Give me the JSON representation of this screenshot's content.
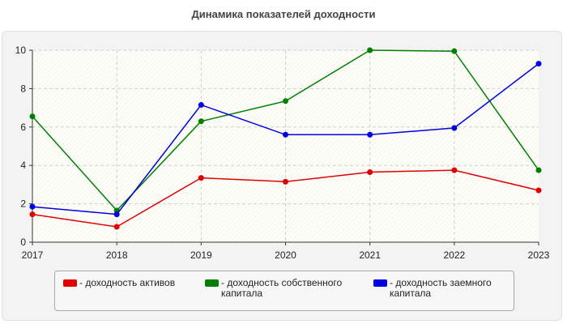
{
  "chart_data": {
    "type": "line",
    "title": "Динамика показателей доходности",
    "x": [
      "2017",
      "2018",
      "2019",
      "2020",
      "2021",
      "2022",
      "2023"
    ],
    "ylim": [
      0,
      10
    ],
    "yticks": [
      "0",
      "2",
      "4",
      "6",
      "8",
      "10"
    ],
    "grid": true,
    "legend_placement": "bottom",
    "series": [
      {
        "name": "- доходность активов",
        "color": "#e00000",
        "values": [
          1.45,
          0.8,
          3.35,
          3.15,
          3.65,
          3.75,
          2.7
        ]
      },
      {
        "name": "- доходность собственного капитала",
        "color": "#008000",
        "values": [
          6.55,
          1.65,
          6.3,
          7.35,
          10.0,
          9.95,
          3.75
        ]
      },
      {
        "name": "- доходность заемного капитала",
        "color": "#0000e0",
        "values": [
          1.85,
          1.45,
          7.15,
          5.6,
          5.6,
          5.95,
          9.3
        ]
      }
    ]
  }
}
